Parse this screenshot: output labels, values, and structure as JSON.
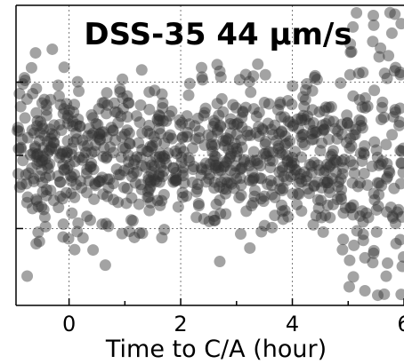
{
  "chart_data": {
    "type": "scatter",
    "title": "DSS-35  44 µm/s",
    "xlabel": "Time to C/A (hour)",
    "ylabel": "",
    "xlim": [
      -0.95,
      6.0
    ],
    "ylim": [
      -2.05,
      2.05
    ],
    "x_ticks": [
      0,
      2,
      4,
      6
    ],
    "x_tick_labels": [
      "0",
      "2",
      "4",
      "6"
    ],
    "y_ticks": [
      -1,
      0,
      1
    ],
    "y_tick_labels": [],
    "grid": true,
    "marker": {
      "color": "#333333",
      "opacity": 0.45
    },
    "outlier_points": [
      {
        "x": -0.75,
        "y": -1.65
      },
      {
        "x": 0.65,
        "y": -1.5
      },
      {
        "x": 2.7,
        "y": -1.45
      },
      {
        "x": 5.3,
        "y": -1.85
      },
      {
        "x": 5.95,
        "y": -1.9
      },
      {
        "x": 5.3,
        "y": -1.4
      },
      {
        "x": -0.6,
        "y": 1.4
      },
      {
        "x": -0.3,
        "y": 1.45
      },
      {
        "x": 5.75,
        "y": 1.95
      },
      {
        "x": 5.95,
        "y": 1.8
      },
      {
        "x": 5.85,
        "y": 1.2
      },
      {
        "x": 2.7,
        "y": 1.15
      }
    ],
    "series": [
      {
        "trend": "noise band centered near 0 with spread about ±1.2 before 5 h, widening to about ±1.8 after 5 h",
        "points_generated": 900,
        "spread_early": 0.55,
        "spread_late": 0.9
      }
    ]
  }
}
